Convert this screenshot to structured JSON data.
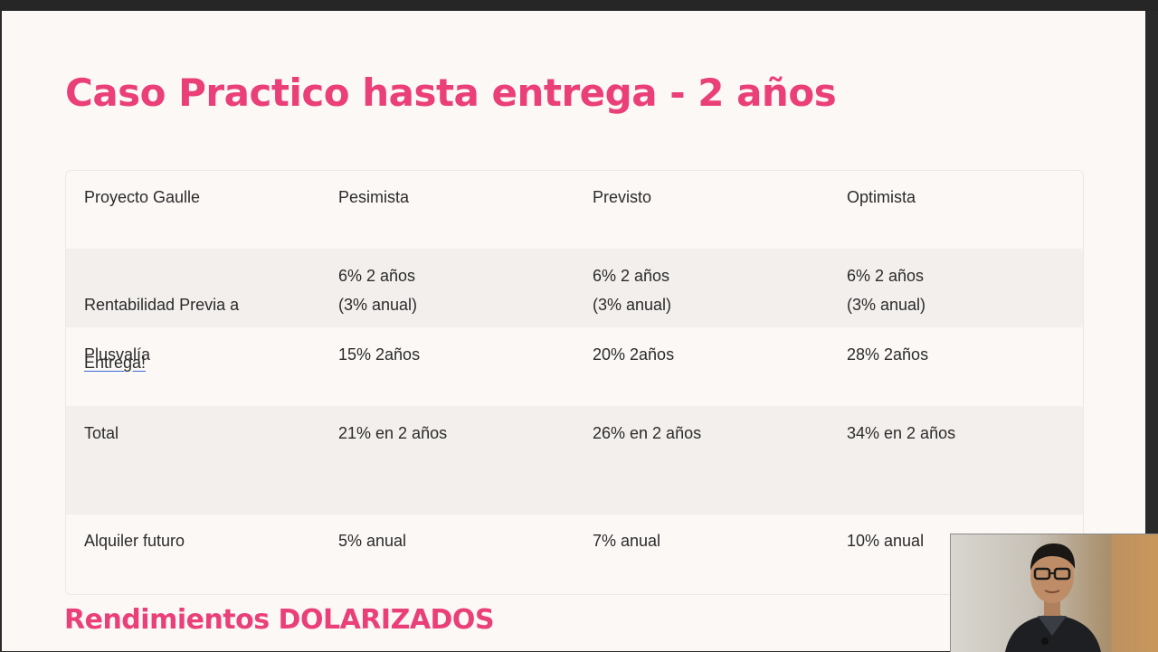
{
  "slide": {
    "title": "Caso Practico hasta entrega - 2 años",
    "subtitle": "Rendimientos DOLARIZADOS"
  },
  "table": {
    "header": [
      "Proyecto Gaulle",
      "Pesimista",
      "Previsto",
      "Optimista"
    ],
    "rows": [
      {
        "label_line1": "Rentabilidad Previa a",
        "label_link": "Entrega!",
        "values": [
          "6% 2 años\n(3% anual)",
          "6% 2 años\n(3% anual)",
          "6% 2 años\n(3% anual)"
        ]
      },
      {
        "label": "Plusvalía",
        "values": [
          "15% 2años",
          "20% 2años",
          "28% 2años"
        ]
      },
      {
        "label": "Total",
        "values": [
          "21% en 2 años",
          "26% en 2 años",
          "34% en 2 años"
        ]
      },
      {
        "label": "Alquiler futuro",
        "values": [
          "5% anual",
          "7% anual",
          "10% anual"
        ]
      }
    ]
  },
  "webcam": {
    "icon": "person-webcam-icon"
  },
  "colors": {
    "accent": "#ea3f78",
    "link_underline": "#3a6bd8",
    "shaded_row": "#f2efec"
  }
}
